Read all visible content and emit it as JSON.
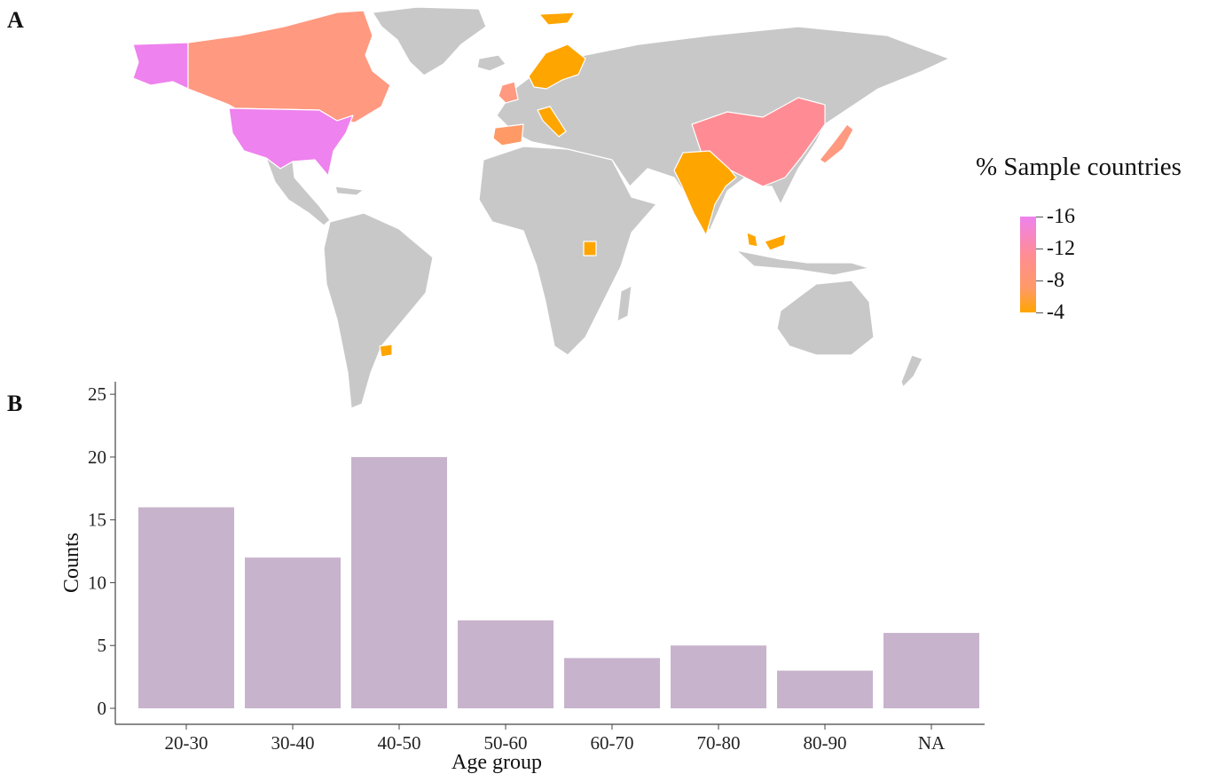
{
  "panels": {
    "a": "A",
    "b": "B"
  },
  "map": {
    "legend_title": "% Sample countries",
    "legend_labels": [
      "-16",
      "-12",
      "-8",
      "-4"
    ],
    "legend_values": [
      16,
      12,
      8,
      4
    ],
    "colors": {
      "land_default": "#c8c8c8",
      "border": "#ffffff",
      "scale_high": "#ee82ee",
      "scale_mid_high": "#ff8c94",
      "scale_mid": "#ff9a66",
      "scale_low": "#ffa500"
    }
  },
  "chart_data": {
    "type": "bar",
    "categories": [
      "20-30",
      "30-40",
      "40-50",
      "50-60",
      "60-70",
      "70-80",
      "80-90",
      "NA"
    ],
    "values": [
      16,
      12,
      20,
      7,
      4,
      5,
      3,
      6
    ],
    "xlabel": "Age group",
    "ylabel": "Counts",
    "ylim": [
      0,
      26
    ],
    "yticks": [
      0,
      5,
      10,
      15,
      20,
      25
    ],
    "bar_color": "#c8b3cc",
    "grid": false
  }
}
